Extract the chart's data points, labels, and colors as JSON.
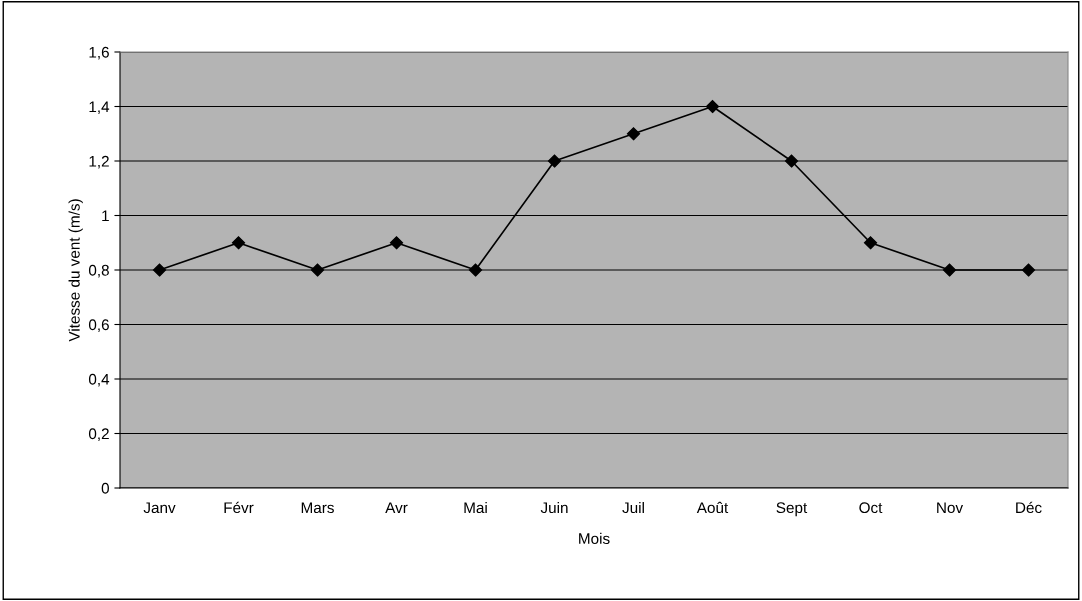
{
  "chart_data": {
    "type": "line",
    "xlabel": "Mois",
    "ylabel": "Vitesse du vent (m/s)",
    "categories": [
      "Janv",
      "Févr",
      "Mars",
      "Avr",
      "Mai",
      "Juin",
      "Juil",
      "Août",
      "Sept",
      "Oct",
      "Nov",
      "Déc"
    ],
    "series": [
      {
        "color": "#000000",
        "values": [
          0.8,
          0.9,
          0.8,
          0.9,
          0.8,
          1.2,
          1.3,
          1.4,
          1.2,
          0.9,
          0.8,
          0.8
        ]
      }
    ],
    "ylim": [
      0,
      1.6
    ],
    "yticks": [
      0,
      {
        "value": 0.2,
        "label": "0,2"
      },
      {
        "value": 0.4,
        "label": "0,4"
      },
      {
        "value": 0.6,
        "label": "0,6"
      },
      {
        "value": 0.8,
        "label": "0,8"
      },
      1,
      {
        "value": 1.2,
        "label": "1,2"
      },
      {
        "value": 1.4,
        "label": "1,4"
      },
      {
        "value": 1.6,
        "label": "1,6"
      }
    ],
    "grid": "y",
    "marker": "diamond",
    "line_style": "solid",
    "legend": false
  }
}
